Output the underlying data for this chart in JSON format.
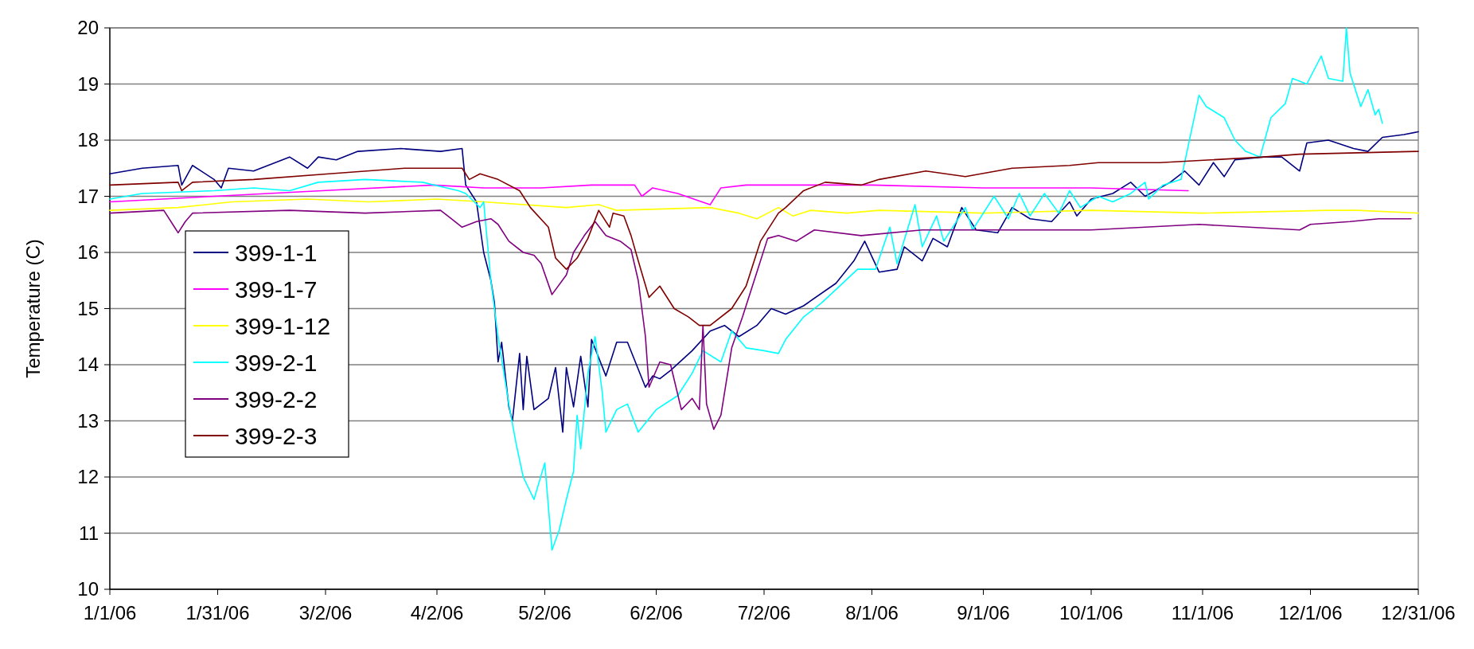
{
  "chart_data": {
    "type": "line",
    "ylabel": "Temperature (C)",
    "xlim": [
      "2006-01-01",
      "2006-12-31"
    ],
    "xticks": [
      {
        "value": "2006-01-01",
        "label": "1/1/06"
      },
      {
        "value": "2006-01-31",
        "label": "1/31/06"
      },
      {
        "value": "2006-03-02",
        "label": "3/2/06"
      },
      {
        "value": "2006-04-02",
        "label": "4/2/06"
      },
      {
        "value": "2006-05-02",
        "label": "5/2/06"
      },
      {
        "value": "2006-06-02",
        "label": "6/2/06"
      },
      {
        "value": "2006-07-02",
        "label": "7/2/06"
      },
      {
        "value": "2006-08-01",
        "label": "8/1/06"
      },
      {
        "value": "2006-09-01",
        "label": "9/1/06"
      },
      {
        "value": "2006-10-01",
        "label": "10/1/06"
      },
      {
        "value": "2006-11-01",
        "label": "11/1/06"
      },
      {
        "value": "2006-12-01",
        "label": "12/1/06"
      },
      {
        "value": "2006-12-31",
        "label": "12/31/06"
      }
    ],
    "ylim": [
      10,
      20
    ],
    "yticks": [
      10,
      11,
      12,
      13,
      14,
      15,
      16,
      17,
      18,
      19,
      20
    ],
    "grid": "y",
    "legend": "left",
    "marker": "none",
    "line_style": "solid",
    "series": [
      {
        "name": "399-1-1",
        "color": "#000080",
        "x": [
          "2006-01-01",
          "2006-01-10",
          "2006-01-20",
          "2006-01-21",
          "2006-01-24",
          "2006-01-30",
          "2006-02-01",
          "2006-02-03",
          "2006-02-10",
          "2006-02-16",
          "2006-02-20",
          "2006-02-25",
          "2006-02-28",
          "2006-03-05",
          "2006-03-11",
          "2006-03-23",
          "2006-04-03",
          "2006-04-09",
          "2006-04-10",
          "2006-04-13",
          "2006-04-15",
          "2006-04-17",
          "2006-04-18",
          "2006-04-19",
          "2006-04-20",
          "2006-04-22",
          "2006-04-23",
          "2006-04-25",
          "2006-04-26",
          "2006-04-27",
          "2006-04-29",
          "2006-05-03",
          "2006-05-05",
          "2006-05-07",
          "2006-05-08",
          "2006-05-10",
          "2006-05-12",
          "2006-05-14",
          "2006-05-15",
          "2006-05-19",
          "2006-05-22",
          "2006-05-25",
          "2006-05-30",
          "2006-06-01",
          "2006-06-03",
          "2006-06-06",
          "2006-06-12",
          "2006-06-17",
          "2006-06-21",
          "2006-06-25",
          "2006-06-30",
          "2006-07-04",
          "2006-07-08",
          "2006-07-13",
          "2006-07-22",
          "2006-07-27",
          "2006-07-30",
          "2006-08-03",
          "2006-08-08",
          "2006-08-10",
          "2006-08-15",
          "2006-08-18",
          "2006-08-22",
          "2006-08-26",
          "2006-08-30",
          "2006-09-05",
          "2006-09-09",
          "2006-09-14",
          "2006-09-20",
          "2006-09-25",
          "2006-09-27",
          "2006-10-01",
          "2006-10-07",
          "2006-10-12",
          "2006-10-16",
          "2006-10-23",
          "2006-10-27",
          "2006-10-31",
          "2006-11-04",
          "2006-11-07",
          "2006-11-10",
          "2006-11-18",
          "2006-11-23",
          "2006-11-28",
          "2006-11-30",
          "2006-12-06",
          "2006-12-13",
          "2006-12-17",
          "2006-12-21",
          "2006-12-27",
          "2006-12-31"
        ],
        "values": [
          17.4,
          17.5,
          17.55,
          17.2,
          17.55,
          17.3,
          17.15,
          17.5,
          17.45,
          17.6,
          17.7,
          17.5,
          17.7,
          17.65,
          17.8,
          17.85,
          17.8,
          17.85,
          17.2,
          16.9,
          16.0,
          15.5,
          15.1,
          14.05,
          14.4,
          13.25,
          13.0,
          14.2,
          13.2,
          14.15,
          13.2,
          13.4,
          13.95,
          12.8,
          13.95,
          13.25,
          14.15,
          13.25,
          14.45,
          13.8,
          14.4,
          14.4,
          13.6,
          13.8,
          13.75,
          13.9,
          14.25,
          14.6,
          14.7,
          14.5,
          14.7,
          15.0,
          14.9,
          15.05,
          15.45,
          15.85,
          16.2,
          15.65,
          15.7,
          16.1,
          15.85,
          16.25,
          16.1,
          16.8,
          16.4,
          16.35,
          16.8,
          16.6,
          16.55,
          16.9,
          16.65,
          16.95,
          17.05,
          17.25,
          17.0,
          17.25,
          17.45,
          17.2,
          17.6,
          17.35,
          17.65,
          17.7,
          17.7,
          17.45,
          17.95,
          18.0,
          17.85,
          17.8,
          18.05,
          18.1,
          18.15
        ]
      },
      {
        "name": "399-1-7",
        "color": "#ff00ff",
        "x": [
          "2006-01-01",
          "2006-01-30",
          "2006-03-01",
          "2006-04-01",
          "2006-04-15",
          "2006-05-01",
          "2006-05-15",
          "2006-05-27",
          "2006-05-29",
          "2006-06-01",
          "2006-06-08",
          "2006-06-17",
          "2006-06-20",
          "2006-06-27",
          "2006-08-01",
          "2006-09-01",
          "2006-10-01",
          "2006-10-28"
        ],
        "values": [
          16.9,
          17.0,
          17.1,
          17.2,
          17.15,
          17.15,
          17.2,
          17.2,
          17.0,
          17.15,
          17.05,
          16.85,
          17.15,
          17.2,
          17.2,
          17.15,
          17.15,
          17.1
        ]
      },
      {
        "name": "399-1-12",
        "color": "#ffff00",
        "x": [
          "2006-01-01",
          "2006-01-20",
          "2006-02-04",
          "2006-02-25",
          "2006-03-14",
          "2006-04-02",
          "2006-04-15",
          "2006-05-08",
          "2006-05-17",
          "2006-05-22",
          "2006-06-17",
          "2006-06-25",
          "2006-06-30",
          "2006-07-06",
          "2006-07-10",
          "2006-07-15",
          "2006-07-25",
          "2006-08-03",
          "2006-09-01",
          "2006-10-01",
          "2006-11-01",
          "2006-12-06",
          "2006-12-14",
          "2006-12-31"
        ],
        "values": [
          16.75,
          16.8,
          16.9,
          16.95,
          16.9,
          16.95,
          16.9,
          16.8,
          16.85,
          16.75,
          16.8,
          16.7,
          16.6,
          16.8,
          16.65,
          16.75,
          16.7,
          16.75,
          16.7,
          16.75,
          16.7,
          16.75,
          16.75,
          16.7
        ]
      },
      {
        "name": "399-2-1",
        "color": "#00ffff",
        "x": [
          "2006-01-01",
          "2006-01-10",
          "2006-01-30",
          "2006-02-10",
          "2006-02-20",
          "2006-02-28",
          "2006-03-13",
          "2006-03-29",
          "2006-04-08",
          "2006-04-10",
          "2006-04-14",
          "2006-04-15",
          "2006-04-17",
          "2006-04-19",
          "2006-04-22",
          "2006-04-24",
          "2006-04-26",
          "2006-04-29",
          "2006-05-02",
          "2006-05-04",
          "2006-05-06",
          "2006-05-08",
          "2006-05-10",
          "2006-05-11",
          "2006-05-12",
          "2006-05-14",
          "2006-05-16",
          "2006-05-18",
          "2006-05-19",
          "2006-05-22",
          "2006-05-25",
          "2006-05-28",
          "2006-06-02",
          "2006-06-08",
          "2006-06-12",
          "2006-06-15",
          "2006-06-20",
          "2006-06-23",
          "2006-06-27",
          "2006-07-02",
          "2006-07-06",
          "2006-07-08",
          "2006-07-13",
          "2006-07-18",
          "2006-07-23",
          "2006-07-28",
          "2006-08-02",
          "2006-08-06",
          "2006-08-08",
          "2006-08-13",
          "2006-08-15",
          "2006-08-19",
          "2006-08-21",
          "2006-08-27",
          "2006-08-29",
          "2006-09-04",
          "2006-09-08",
          "2006-09-11",
          "2006-09-14",
          "2006-09-18",
          "2006-09-22",
          "2006-09-25",
          "2006-09-28",
          "2006-10-03",
          "2006-10-07",
          "2006-10-12",
          "2006-10-16",
          "2006-10-17",
          "2006-10-21",
          "2006-10-26",
          "2006-10-28",
          "2006-10-31",
          "2006-11-02",
          "2006-11-07",
          "2006-11-10",
          "2006-11-13",
          "2006-11-17",
          "2006-11-20",
          "2006-11-24",
          "2006-11-26",
          "2006-11-30",
          "2006-12-04",
          "2006-12-06",
          "2006-12-10",
          "2006-12-11",
          "2006-12-12",
          "2006-12-15",
          "2006-12-17",
          "2006-12-19",
          "2006-12-20",
          "2006-12-21"
        ],
        "values": [
          16.95,
          17.05,
          17.1,
          17.15,
          17.1,
          17.25,
          17.3,
          17.25,
          17.1,
          17.05,
          16.8,
          16.9,
          15.5,
          14.5,
          13.3,
          12.6,
          12.0,
          11.6,
          12.25,
          10.7,
          11.05,
          11.6,
          12.1,
          13.1,
          12.5,
          13.85,
          14.5,
          13.5,
          12.8,
          13.2,
          13.3,
          12.8,
          13.2,
          13.45,
          13.85,
          14.25,
          14.05,
          14.6,
          14.3,
          14.25,
          14.2,
          14.45,
          14.85,
          15.1,
          15.4,
          15.7,
          15.7,
          16.45,
          15.8,
          16.85,
          16.1,
          16.65,
          16.2,
          16.8,
          16.4,
          17.0,
          16.6,
          17.05,
          16.65,
          17.05,
          16.7,
          17.1,
          16.8,
          17.0,
          16.9,
          17.05,
          17.25,
          16.95,
          17.2,
          17.3,
          17.9,
          18.8,
          18.6,
          18.4,
          18.0,
          17.8,
          17.7,
          18.4,
          18.65,
          19.1,
          19.0,
          19.5,
          19.1,
          19.05,
          20.0,
          19.2,
          18.6,
          18.9,
          18.45,
          18.55,
          18.3
        ]
      },
      {
        "name": "399-2-2",
        "color": "#800080",
        "x": [
          "2006-01-01",
          "2006-01-16",
          "2006-01-19",
          "2006-01-20",
          "2006-01-22",
          "2006-01-24",
          "2006-02-20",
          "2006-03-13",
          "2006-04-03",
          "2006-04-06",
          "2006-04-09",
          "2006-04-13",
          "2006-04-17",
          "2006-04-19",
          "2006-04-22",
          "2006-04-26",
          "2006-04-29",
          "2006-05-01",
          "2006-05-04",
          "2006-05-08",
          "2006-05-10",
          "2006-05-13",
          "2006-05-16",
          "2006-05-19",
          "2006-05-23",
          "2006-05-26",
          "2006-05-28",
          "2006-05-30",
          "2006-05-31",
          "2006-06-03",
          "2006-06-06",
          "2006-06-09",
          "2006-06-12",
          "2006-06-14",
          "2006-06-15",
          "2006-06-16",
          "2006-06-18",
          "2006-06-20",
          "2006-06-23",
          "2006-06-26",
          "2006-06-30",
          "2006-07-03",
          "2006-07-06",
          "2006-07-11",
          "2006-07-16",
          "2006-07-29",
          "2006-08-15",
          "2006-09-15",
          "2006-10-01",
          "2006-10-31",
          "2006-11-28",
          "2006-12-01",
          "2006-12-12",
          "2006-12-20",
          "2006-12-29"
        ],
        "values": [
          16.7,
          16.75,
          16.45,
          16.35,
          16.55,
          16.7,
          16.75,
          16.7,
          16.75,
          16.6,
          16.45,
          16.55,
          16.6,
          16.5,
          16.2,
          16.0,
          15.95,
          15.8,
          15.25,
          15.6,
          16.0,
          16.3,
          16.55,
          16.3,
          16.2,
          16.05,
          15.5,
          14.5,
          13.6,
          14.05,
          14.0,
          13.2,
          13.4,
          13.2,
          14.7,
          13.3,
          12.85,
          13.1,
          14.3,
          14.85,
          15.65,
          16.25,
          16.3,
          16.2,
          16.4,
          16.3,
          16.4,
          16.4,
          16.4,
          16.5,
          16.4,
          16.5,
          16.55,
          16.6,
          16.6
        ]
      },
      {
        "name": "399-2-3",
        "color": "#800000",
        "x": [
          "2006-01-01",
          "2006-01-20",
          "2006-01-21",
          "2006-01-24",
          "2006-02-10",
          "2006-03-03",
          "2006-03-24",
          "2006-04-09",
          "2006-04-11",
          "2006-04-14",
          "2006-04-19",
          "2006-04-25",
          "2006-04-28",
          "2006-05-03",
          "2006-05-05",
          "2006-05-08",
          "2006-05-11",
          "2006-05-14",
          "2006-05-17",
          "2006-05-20",
          "2006-05-21",
          "2006-05-24",
          "2006-05-26",
          "2006-05-28",
          "2006-05-31",
          "2006-06-03",
          "2006-06-07",
          "2006-06-11",
          "2006-06-14",
          "2006-06-17",
          "2006-06-23",
          "2006-06-27",
          "2006-07-01",
          "2006-07-06",
          "2006-07-08",
          "2006-07-13",
          "2006-07-19",
          "2006-07-29",
          "2006-08-03",
          "2006-08-16",
          "2006-08-27",
          "2006-09-09",
          "2006-09-25",
          "2006-10-03",
          "2006-10-20",
          "2006-11-18",
          "2006-11-28",
          "2006-12-31"
        ],
        "values": [
          17.2,
          17.25,
          17.1,
          17.25,
          17.3,
          17.4,
          17.5,
          17.5,
          17.3,
          17.4,
          17.3,
          17.1,
          16.8,
          16.45,
          15.9,
          15.7,
          15.9,
          16.25,
          16.75,
          16.45,
          16.7,
          16.65,
          16.3,
          15.85,
          15.2,
          15.4,
          15.0,
          14.85,
          14.7,
          14.7,
          15.0,
          15.4,
          16.2,
          16.7,
          16.8,
          17.1,
          17.25,
          17.2,
          17.3,
          17.45,
          17.35,
          17.5,
          17.55,
          17.6,
          17.6,
          17.7,
          17.75,
          17.8
        ]
      }
    ]
  }
}
